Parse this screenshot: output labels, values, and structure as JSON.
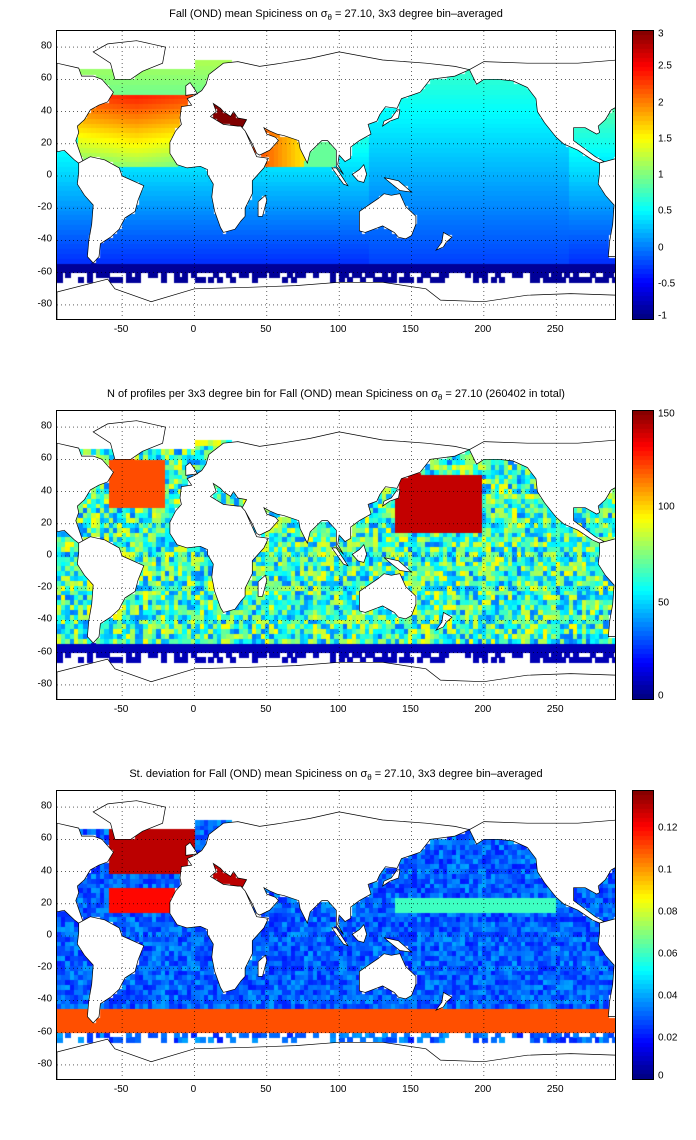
{
  "chart_data": [
    {
      "type": "heatmap",
      "title_pre": "Fall (OND) mean Spiciness on ",
      "title_sigma": "σ",
      "title_sub": "θ",
      "title_post": " = 27.10, 3x3 degree bin–averaged",
      "x_ticks": [
        "-50",
        "0",
        "50",
        "100",
        "150",
        "200",
        "250"
      ],
      "y_ticks": [
        "80",
        "60",
        "40",
        "20",
        "0",
        "-20",
        "-40",
        "-60",
        "-80"
      ],
      "xlim": [
        -95,
        292
      ],
      "ylim": [
        -90,
        90
      ],
      "colorbar_ticks": [
        "3",
        "2.5",
        "2",
        "1.5",
        "1",
        "0.5",
        "0",
        "-0.5",
        "-1"
      ],
      "clim": [
        -1,
        3
      ],
      "colormap": "jet",
      "variable": "spiciness"
    },
    {
      "type": "heatmap",
      "title_pre": "N of profiles per 3x3 degree bin for Fall (OND) mean Spiciness on ",
      "title_sigma": "σ",
      "title_sub": "θ",
      "title_post": " = 27.10 (260402 in total)",
      "x_ticks": [
        "-50",
        "0",
        "50",
        "100",
        "150",
        "200",
        "250"
      ],
      "y_ticks": [
        "80",
        "60",
        "40",
        "20",
        "0",
        "-20",
        "-40",
        "-60",
        "-80"
      ],
      "xlim": [
        -95,
        292
      ],
      "ylim": [
        -90,
        90
      ],
      "colorbar_ticks": [
        "150",
        "100",
        "50",
        "0"
      ],
      "clim": [
        0,
        150
      ],
      "colormap": "jet",
      "variable": "count"
    },
    {
      "type": "heatmap",
      "title_pre": "St. deviation for Fall (OND) mean Spiciness on ",
      "title_sigma": "σ",
      "title_sub": "θ",
      "title_post": " = 27.10, 3x3 degree bin–averaged",
      "x_ticks": [
        "-50",
        "0",
        "50",
        "100",
        "150",
        "200",
        "250"
      ],
      "y_ticks": [
        "80",
        "60",
        "40",
        "20",
        "0",
        "-20",
        "-40",
        "-60",
        "-80"
      ],
      "xlim": [
        -95,
        292
      ],
      "ylim": [
        -90,
        90
      ],
      "colorbar_ticks": [
        "0.12",
        "0.1",
        "0.08",
        "0.06",
        "0.04",
        "0.02",
        "0"
      ],
      "clim": [
        0,
        0.138
      ],
      "colormap": "jet",
      "variable": "stddev"
    }
  ]
}
